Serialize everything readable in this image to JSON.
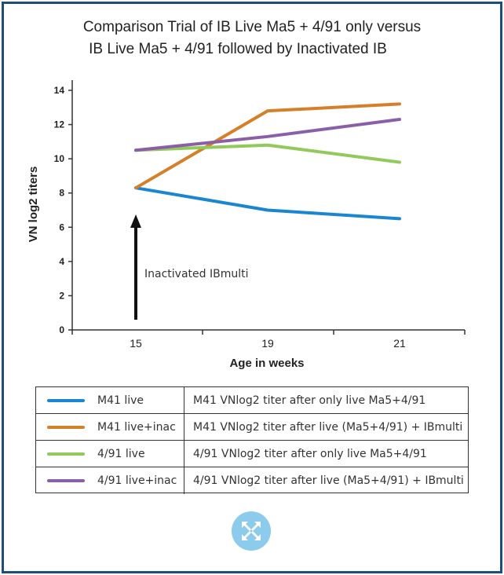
{
  "chart_data": {
    "type": "line",
    "title_line1": "Comparison Trial of IB Live Ma5 + 4/91 only versus",
    "title_line2": "IB Live Ma5 + 4/91 followed by Inactivated IB",
    "xlabel": "Age in weeks",
    "ylabel": "VN log2 titers",
    "categories": [
      "15",
      "19",
      "21"
    ],
    "y_ticks": [
      "0",
      "2",
      "4",
      "6",
      "8",
      "10",
      "12",
      "14"
    ],
    "ylim": [
      0,
      14
    ],
    "series": [
      {
        "name": "M41 live",
        "color": "#1a86d1",
        "values": [
          8.3,
          7.0,
          6.5
        ]
      },
      {
        "name": "M41 live+inac",
        "color": "#d67f2b",
        "values": [
          8.3,
          12.8,
          13.2
        ]
      },
      {
        "name": "4/91 live",
        "color": "#92c95b",
        "values": [
          10.5,
          10.8,
          9.8
        ]
      },
      {
        "name": "4/91 live+inac",
        "color": "#8a5fa8",
        "values": [
          10.5,
          11.3,
          12.3
        ]
      }
    ],
    "annotation": {
      "text": "Inactivated IBmulti",
      "at_category": "15"
    }
  },
  "legend": [
    {
      "name": "M41 live",
      "description": "M41 VNlog2 titer after only live Ma5+4/91",
      "color": "#1a86d1"
    },
    {
      "name": "M41 live+inac",
      "description": "M41 VNlog2 titer after live (Ma5+4/91) + IBmulti",
      "color": "#d67f2b"
    },
    {
      "name": "4/91 live",
      "description": "4/91 VNlog2 titer after only live Ma5+4/91",
      "color": "#92c95b"
    },
    {
      "name": "4/91 live+inac",
      "description": "4/91 VNlog2 titer after live (Ma5+4/91) + IBmulti",
      "color": "#8a5fa8"
    }
  ],
  "logo": {
    "icon": "compass-arrows-icon",
    "color": "#8ccbec"
  }
}
